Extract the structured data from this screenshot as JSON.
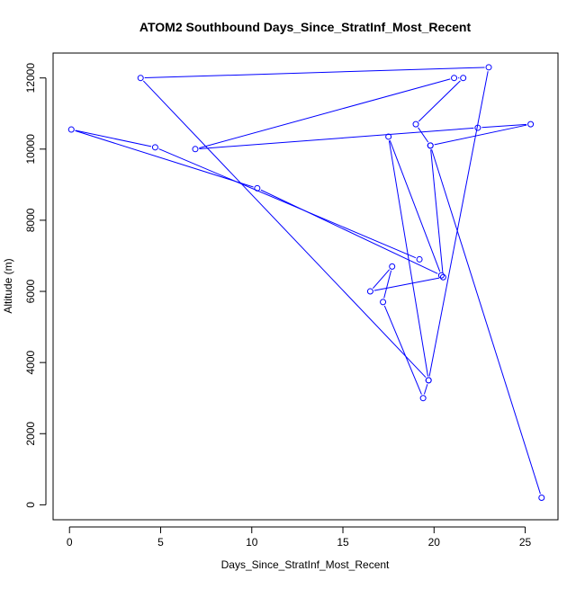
{
  "chart_data": {
    "type": "line",
    "title": "ATOM2 Southbound Days_Since_StratInf_Most_Recent",
    "xlabel": "Days_Since_StratInf_Most_Recent",
    "ylabel": "Altitude (m)",
    "xlim": [
      -0.9,
      26.8
    ],
    "ylim": [
      -420,
      12700
    ],
    "xticks": [
      0,
      5,
      10,
      15,
      20,
      25
    ],
    "yticks": [
      0,
      2000,
      4000,
      6000,
      8000,
      10000,
      12000
    ],
    "grid": false,
    "legend": "none",
    "marker": "open-circle",
    "color": "#0000ff",
    "series": [
      {
        "x": [
          25.9,
          19.8,
          19.0,
          21.6,
          21.1,
          6.9,
          22.4,
          25.3,
          19.8,
          20.5,
          16.5,
          17.7,
          17.2,
          19.4,
          19.7,
          23.0,
          3.9,
          19.7,
          17.5,
          20.4,
          10.3,
          0.1,
          4.7,
          19.2
        ],
        "y": [
          200,
          10100,
          10700,
          12000,
          12000,
          10000,
          10600,
          10700,
          10100,
          6400,
          6000,
          6700,
          5700,
          3000,
          3500,
          12300,
          12000,
          3500,
          10350,
          6450,
          8900,
          10550,
          10050,
          6900
        ]
      }
    ]
  }
}
